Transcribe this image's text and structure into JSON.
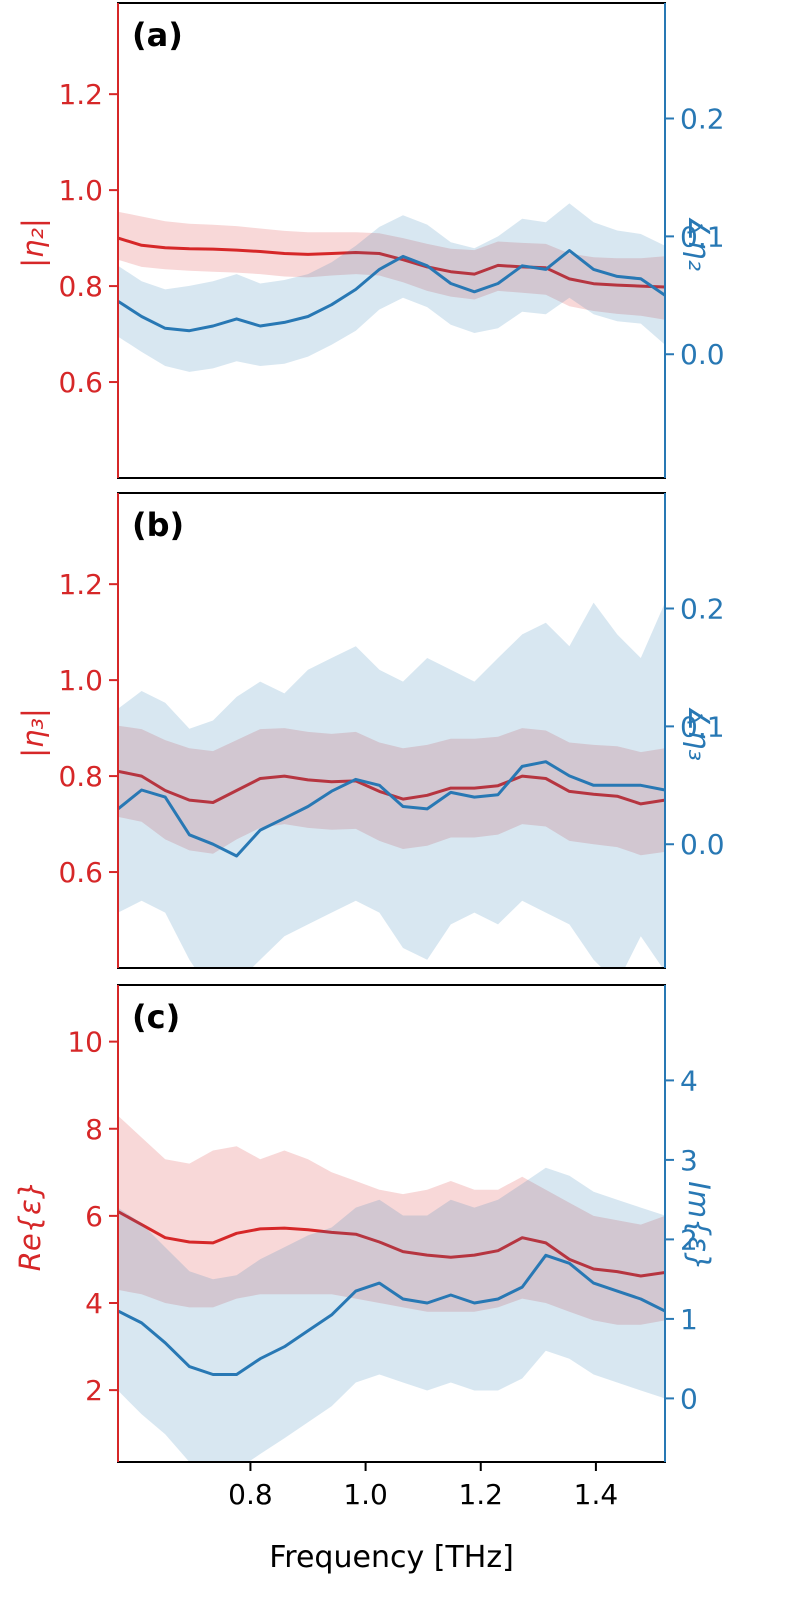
{
  "chart_data": {
    "type": "line",
    "xlabel": "Frequency [THz]",
    "xlim": [
      0.57,
      1.52
    ],
    "x_ticks": [
      0.8,
      1.0,
      1.2,
      1.4
    ],
    "x_tick_labels": [
      "0.8",
      "1.0",
      "1.2",
      "1.4"
    ],
    "x": [
      0.57,
      0.611,
      0.652,
      0.694,
      0.735,
      0.776,
      0.817,
      0.859,
      0.9,
      0.941,
      0.983,
      1.024,
      1.065,
      1.107,
      1.148,
      1.189,
      1.23,
      1.272,
      1.313,
      1.354,
      1.396,
      1.437,
      1.478,
      1.52
    ],
    "panels": [
      {
        "panel_label": "(a)",
        "left_axis": {
          "label": "|η₂|",
          "color": "#d62728",
          "ylim": [
            0.4,
            1.39
          ],
          "ticks": [
            0.6,
            0.8,
            1.0,
            1.2
          ],
          "tick_labels": [
            "0.6",
            "0.8",
            "1.0",
            "1.2"
          ]
        },
        "right_axis": {
          "label": "∡η₂",
          "color": "#2878b4",
          "ylim": [
            -0.105,
            0.298
          ],
          "ticks": [
            0.0,
            0.1,
            0.2
          ],
          "tick_labels": [
            "0.0",
            "0.1",
            "0.2"
          ]
        },
        "series": [
          {
            "name": "|η₂|",
            "axis": "left",
            "color": "#d62728",
            "band_opacity": 0.18,
            "values": [
              0.9,
              0.885,
              0.88,
              0.878,
              0.877,
              0.875,
              0.872,
              0.868,
              0.866,
              0.868,
              0.87,
              0.868,
              0.855,
              0.84,
              0.83,
              0.825,
              0.843,
              0.84,
              0.838,
              0.815,
              0.805,
              0.802,
              0.8,
              0.798
            ],
            "band_upper": [
              0.955,
              0.945,
              0.935,
              0.93,
              0.928,
              0.925,
              0.92,
              0.915,
              0.912,
              0.912,
              0.912,
              0.91,
              0.9,
              0.888,
              0.878,
              0.875,
              0.893,
              0.89,
              0.888,
              0.868,
              0.86,
              0.858,
              0.858,
              0.862
            ],
            "band_lower": [
              0.855,
              0.84,
              0.835,
              0.832,
              0.83,
              0.828,
              0.825,
              0.82,
              0.818,
              0.822,
              0.825,
              0.822,
              0.808,
              0.79,
              0.778,
              0.772,
              0.79,
              0.786,
              0.782,
              0.758,
              0.748,
              0.742,
              0.738,
              0.73
            ]
          },
          {
            "name": "∡η₂",
            "axis": "right",
            "color": "#2878b4",
            "band_opacity": 0.18,
            "values": [
              0.045,
              0.032,
              0.022,
              0.02,
              0.024,
              0.03,
              0.024,
              0.027,
              0.032,
              0.042,
              0.055,
              0.072,
              0.083,
              0.075,
              0.06,
              0.053,
              0.06,
              0.075,
              0.072,
              0.088,
              0.072,
              0.066,
              0.064,
              0.05
            ],
            "band_upper": [
              0.075,
              0.062,
              0.055,
              0.058,
              0.062,
              0.068,
              0.06,
              0.063,
              0.068,
              0.078,
              0.092,
              0.108,
              0.118,
              0.11,
              0.095,
              0.09,
              0.1,
              0.115,
              0.112,
              0.128,
              0.112,
              0.105,
              0.102,
              0.092
            ],
            "band_lower": [
              0.015,
              0.002,
              -0.01,
              -0.015,
              -0.012,
              -0.006,
              -0.01,
              -0.008,
              -0.002,
              0.008,
              0.02,
              0.038,
              0.048,
              0.04,
              0.025,
              0.018,
              0.022,
              0.036,
              0.034,
              0.048,
              0.034,
              0.028,
              0.026,
              0.008
            ]
          }
        ]
      },
      {
        "panel_label": "(b)",
        "left_axis": {
          "label": "|η₃|",
          "color": "#d62728",
          "ylim": [
            0.4,
            1.39
          ],
          "ticks": [
            0.6,
            0.8,
            1.0,
            1.2
          ],
          "tick_labels": [
            "0.6",
            "0.8",
            "1.0",
            "1.2"
          ]
        },
        "right_axis": {
          "label": "∡η₃",
          "color": "#2878b4",
          "ylim": [
            -0.105,
            0.298
          ],
          "ticks": [
            0.0,
            0.1,
            0.2
          ],
          "tick_labels": [
            "0.0",
            "0.1",
            "0.2"
          ]
        },
        "series": [
          {
            "name": "|η₃|",
            "axis": "left",
            "color": "#d62728",
            "band_opacity": 0.18,
            "values": [
              0.81,
              0.8,
              0.77,
              0.75,
              0.745,
              0.77,
              0.795,
              0.8,
              0.792,
              0.788,
              0.79,
              0.768,
              0.752,
              0.76,
              0.775,
              0.775,
              0.78,
              0.8,
              0.795,
              0.768,
              0.762,
              0.758,
              0.742,
              0.75
            ],
            "band_upper": [
              0.905,
              0.898,
              0.875,
              0.858,
              0.852,
              0.875,
              0.898,
              0.9,
              0.892,
              0.888,
              0.892,
              0.87,
              0.858,
              0.865,
              0.878,
              0.878,
              0.882,
              0.9,
              0.895,
              0.87,
              0.865,
              0.862,
              0.85,
              0.858
            ],
            "band_lower": [
              0.715,
              0.705,
              0.668,
              0.645,
              0.638,
              0.668,
              0.692,
              0.7,
              0.692,
              0.688,
              0.69,
              0.665,
              0.648,
              0.655,
              0.672,
              0.672,
              0.678,
              0.7,
              0.695,
              0.665,
              0.658,
              0.652,
              0.635,
              0.642
            ]
          },
          {
            "name": "∡η₃",
            "axis": "right",
            "color": "#2878b4",
            "band_opacity": 0.18,
            "values": [
              0.03,
              0.046,
              0.04,
              0.008,
              0.0,
              -0.01,
              0.012,
              0.022,
              0.032,
              0.045,
              0.055,
              0.05,
              0.032,
              0.03,
              0.044,
              0.04,
              0.042,
              0.066,
              0.07,
              0.058,
              0.05,
              0.05,
              0.05,
              0.046
            ],
            "band_upper": [
              0.115,
              0.13,
              0.12,
              0.098,
              0.105,
              0.125,
              0.138,
              0.128,
              0.148,
              0.158,
              0.168,
              0.148,
              0.138,
              0.158,
              0.148,
              0.138,
              0.158,
              0.178,
              0.188,
              0.168,
              0.205,
              0.178,
              0.158,
              0.205
            ],
            "band_lower": [
              -0.058,
              -0.048,
              -0.058,
              -0.098,
              -0.128,
              -0.118,
              -0.098,
              -0.078,
              -0.068,
              -0.058,
              -0.048,
              -0.058,
              -0.088,
              -0.098,
              -0.068,
              -0.058,
              -0.068,
              -0.048,
              -0.058,
              -0.068,
              -0.098,
              -0.118,
              -0.078,
              -0.108
            ]
          }
        ]
      },
      {
        "panel_label": "(c)",
        "left_axis": {
          "label": "Re{ε}",
          "color": "#d62728",
          "ylim": [
            0.35,
            11.3
          ],
          "ticks": [
            2,
            4,
            6,
            8,
            10
          ],
          "tick_labels": [
            "2",
            "4",
            "6",
            "8",
            "10"
          ]
        },
        "right_axis": {
          "label": "Im{ε}",
          "color": "#2878b4",
          "ylim": [
            -0.8,
            5.2
          ],
          "ticks": [
            0,
            1,
            2,
            3,
            4
          ],
          "tick_labels": [
            "0",
            "1",
            "2",
            "3",
            "4"
          ]
        },
        "series": [
          {
            "name": "Re{ε}",
            "axis": "left",
            "color": "#d62728",
            "band_opacity": 0.18,
            "values": [
              6.1,
              5.8,
              5.5,
              5.4,
              5.38,
              5.6,
              5.7,
              5.72,
              5.68,
              5.62,
              5.58,
              5.4,
              5.18,
              5.1,
              5.05,
              5.1,
              5.2,
              5.5,
              5.38,
              5.0,
              4.78,
              4.72,
              4.62,
              4.7
            ],
            "band_upper": [
              8.3,
              7.8,
              7.3,
              7.2,
              7.5,
              7.6,
              7.3,
              7.5,
              7.3,
              7.0,
              6.8,
              6.6,
              6.5,
              6.6,
              6.8,
              6.6,
              6.6,
              6.9,
              6.6,
              6.3,
              6.0,
              5.9,
              5.8,
              6.0
            ],
            "band_lower": [
              4.3,
              4.2,
              4.0,
              3.9,
              3.9,
              4.1,
              4.2,
              4.2,
              4.2,
              4.2,
              4.1,
              4.0,
              3.9,
              3.8,
              3.8,
              3.8,
              3.9,
              4.1,
              4.0,
              3.8,
              3.6,
              3.5,
              3.5,
              3.6
            ]
          },
          {
            "name": "Im{ε}",
            "axis": "right",
            "color": "#2878b4",
            "band_opacity": 0.18,
            "values": [
              1.1,
              0.95,
              0.7,
              0.4,
              0.3,
              0.3,
              0.5,
              0.65,
              0.85,
              1.05,
              1.35,
              1.45,
              1.25,
              1.2,
              1.3,
              1.2,
              1.25,
              1.4,
              1.8,
              1.7,
              1.45,
              1.35,
              1.25,
              1.1
            ],
            "band_upper": [
              2.4,
              2.2,
              1.9,
              1.6,
              1.5,
              1.55,
              1.75,
              1.9,
              2.05,
              2.15,
              2.4,
              2.5,
              2.3,
              2.3,
              2.5,
              2.4,
              2.5,
              2.7,
              2.9,
              2.8,
              2.6,
              2.5,
              2.4,
              2.3
            ],
            "band_lower": [
              0.1,
              -0.2,
              -0.45,
              -0.8,
              -0.9,
              -0.9,
              -0.7,
              -0.5,
              -0.3,
              -0.1,
              0.2,
              0.3,
              0.2,
              0.1,
              0.2,
              0.1,
              0.1,
              0.25,
              0.6,
              0.5,
              0.3,
              0.2,
              0.1,
              0.0
            ]
          }
        ]
      }
    ]
  }
}
